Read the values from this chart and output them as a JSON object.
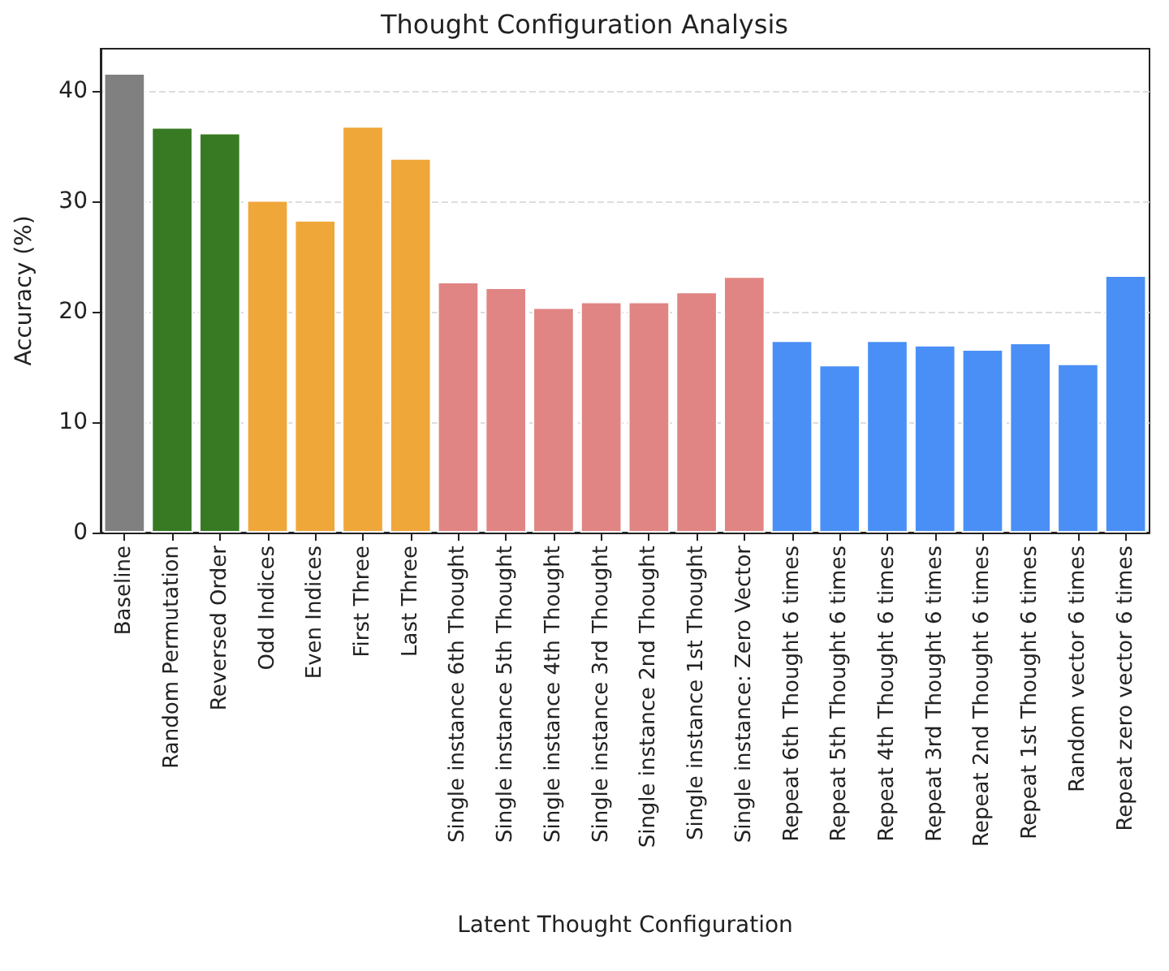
{
  "chart_data": {
    "type": "bar",
    "title": "Thought Configuration Analysis",
    "xlabel": "Latent Thought Configuration",
    "ylabel": "Accuracy (%)",
    "categories": [
      "Baseline",
      "Random Permutation",
      "Reversed Order",
      "Odd Indices",
      "Even Indices",
      "First Three",
      "Last Three",
      "Single instance 6th Thought",
      "Single instance 5th Thought",
      "Single instance 4th Thought",
      "Single instance 3rd Thought",
      "Single instance 2nd Thought",
      "Single instance 1st Thought",
      "Single instance: Zero Vector",
      "Repeat 6th Thought 6 times",
      "Repeat 5th Thought 6 times",
      "Repeat 4th Thought 6 times",
      "Repeat 3rd Thought 6 times",
      "Repeat 2nd Thought 6 times",
      "Repeat 1st Thought 6 times",
      "Random vector 6 times",
      "Repeat zero vector 6 times"
    ],
    "values": [
      41.6,
      36.7,
      36.2,
      30.1,
      28.3,
      36.8,
      33.9,
      22.7,
      22.2,
      20.4,
      20.9,
      20.9,
      21.8,
      23.2,
      17.4,
      15.2,
      17.4,
      17.0,
      16.6,
      17.2,
      15.3,
      23.3
    ],
    "colors": [
      "#808080",
      "#387a23",
      "#387a23",
      "#f0a73a",
      "#f0a73a",
      "#f0a73a",
      "#f0a73a",
      "#e08583",
      "#e08583",
      "#e08583",
      "#e08583",
      "#e08583",
      "#e08583",
      "#e08583",
      "#4a8ff5",
      "#4a8ff5",
      "#4a8ff5",
      "#4a8ff5",
      "#4a8ff5",
      "#4a8ff5",
      "#4a8ff5",
      "#4a8ff5"
    ],
    "ylim": [
      0,
      43.8
    ],
    "yticks": [
      0,
      10,
      20,
      30,
      40
    ],
    "grid": "y"
  }
}
